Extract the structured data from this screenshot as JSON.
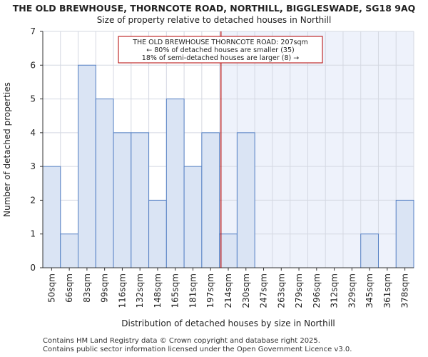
{
  "chart_data": {
    "type": "bar",
    "title": "THE OLD BREWHOUSE, THORNCOTE ROAD, NORTHILL, BIGGLESWADE, SG18 9AQ",
    "subtitle": "Size of property relative to detached houses in Northill",
    "xlabel": "Distribution of detached houses by size in Northill",
    "ylabel": "Number of detached properties",
    "categories": [
      "50sqm",
      "66sqm",
      "83sqm",
      "99sqm",
      "116sqm",
      "132sqm",
      "148sqm",
      "165sqm",
      "181sqm",
      "197sqm",
      "214sqm",
      "230sqm",
      "247sqm",
      "263sqm",
      "279sqm",
      "296sqm",
      "312sqm",
      "329sqm",
      "345sqm",
      "361sqm",
      "378sqm"
    ],
    "values": [
      3,
      1,
      6,
      5,
      4,
      4,
      2,
      5,
      3,
      4,
      1,
      4,
      0,
      0,
      0,
      0,
      0,
      0,
      1,
      0,
      2
    ],
    "ylim": [
      0,
      7
    ],
    "yticks": [
      0,
      1,
      2,
      3,
      4,
      5,
      6,
      7
    ],
    "marker_value": 207,
    "bar_color": "#dae4f4",
    "bar_edge_color": "#5580c4",
    "right_shade_color": "#eef2fb",
    "marker_color": "#b30000",
    "annotation": {
      "line1": "THE OLD BREWHOUSE THORNCOTE ROAD: 207sqm",
      "line2": "← 80% of detached houses are smaller (35)",
      "line3": "18% of semi-detached houses are larger (8) →"
    }
  },
  "footer": {
    "line1": "Contains HM Land Registry data © Crown copyright and database right 2025.",
    "line2": "Contains public sector information licensed under the Open Government Licence v3.0."
  }
}
